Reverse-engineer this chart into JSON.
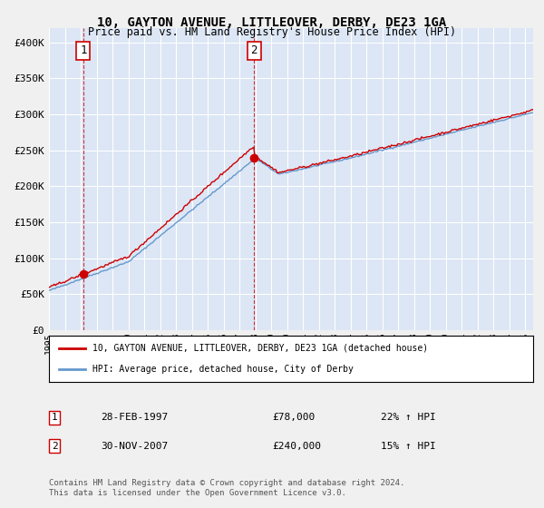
{
  "title": "10, GAYTON AVENUE, LITTLEOVER, DERBY, DE23 1GA",
  "subtitle": "Price paid vs. HM Land Registry's House Price Index (HPI)",
  "ytick_values": [
    0,
    50000,
    100000,
    150000,
    200000,
    250000,
    300000,
    350000,
    400000
  ],
  "ylim": [
    0,
    420000
  ],
  "xlim_start": 1995.0,
  "xlim_end": 2025.5,
  "plot_bg_color": "#dce6f5",
  "grid_color": "#ffffff",
  "red_line_color": "#cc0000",
  "blue_line_color": "#6699cc",
  "transaction1_year": 1997.167,
  "transaction1_price": 78000,
  "transaction2_year": 2007.917,
  "transaction2_price": 240000,
  "legend_label_red": "10, GAYTON AVENUE, LITTLEOVER, DERBY, DE23 1GA (detached house)",
  "legend_label_blue": "HPI: Average price, detached house, City of Derby",
  "note1_date": "28-FEB-1997",
  "note1_price": "£78,000",
  "note1_hpi": "22% ↑ HPI",
  "note2_date": "30-NOV-2007",
  "note2_price": "£240,000",
  "note2_hpi": "15% ↑ HPI",
  "footer": "Contains HM Land Registry data © Crown copyright and database right 2024.\nThis data is licensed under the Open Government Licence v3.0."
}
